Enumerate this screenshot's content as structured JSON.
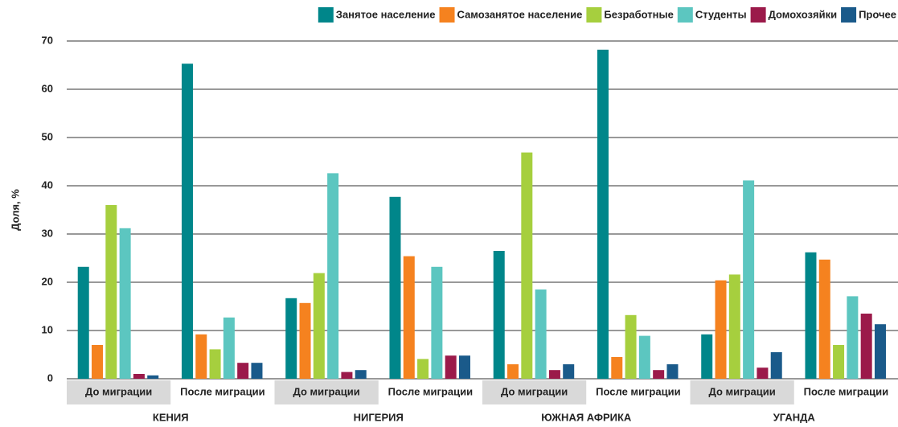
{
  "chart_data": {
    "type": "bar",
    "ylabel": "Доля, %",
    "groups": [
      "КЕНИЯ",
      "НИГЕРИЯ",
      "ЮЖНАЯ АФРИКА",
      "УГАНДА"
    ],
    "categories": [
      "До миграции",
      "После миграции",
      "До миграции",
      "После миграции",
      "До миграции",
      "После миграции",
      "До миграции",
      "После миграции"
    ],
    "series": [
      {
        "name": "Занятое население",
        "color": "#00868a",
        "values": [
          23.2,
          65.3,
          16.7,
          37.7,
          26.5,
          68.2,
          9.2,
          26.2
        ]
      },
      {
        "name": "Самозанятое население",
        "color": "#f5821f",
        "values": [
          7,
          9.2,
          15.7,
          25.4,
          3,
          4.5,
          20.4,
          24.7
        ]
      },
      {
        "name": "Безработные",
        "color": "#a6cf3e",
        "values": [
          36,
          6.1,
          21.9,
          4.1,
          46.9,
          13.2,
          21.6,
          7
        ]
      },
      {
        "name": "Студенты",
        "color": "#5cc6c0",
        "values": [
          31.2,
          12.7,
          42.6,
          23.2,
          18.5,
          8.9,
          41.1,
          17.1
        ]
      },
      {
        "name": "Домохозяйки",
        "color": "#9b1a4a",
        "values": [
          1,
          3.3,
          1.4,
          4.8,
          1.8,
          1.8,
          2.3,
          13.5
        ]
      },
      {
        "name": "Прочее",
        "color": "#1a5a8a",
        "values": [
          0.7,
          3.3,
          1.8,
          4.8,
          3,
          3,
          5.5,
          11.3
        ]
      }
    ],
    "ylim": [
      0,
      70
    ],
    "yticks": [
      0,
      10,
      20,
      30,
      40,
      50,
      60,
      70
    ],
    "grid": true,
    "legend": "top"
  }
}
